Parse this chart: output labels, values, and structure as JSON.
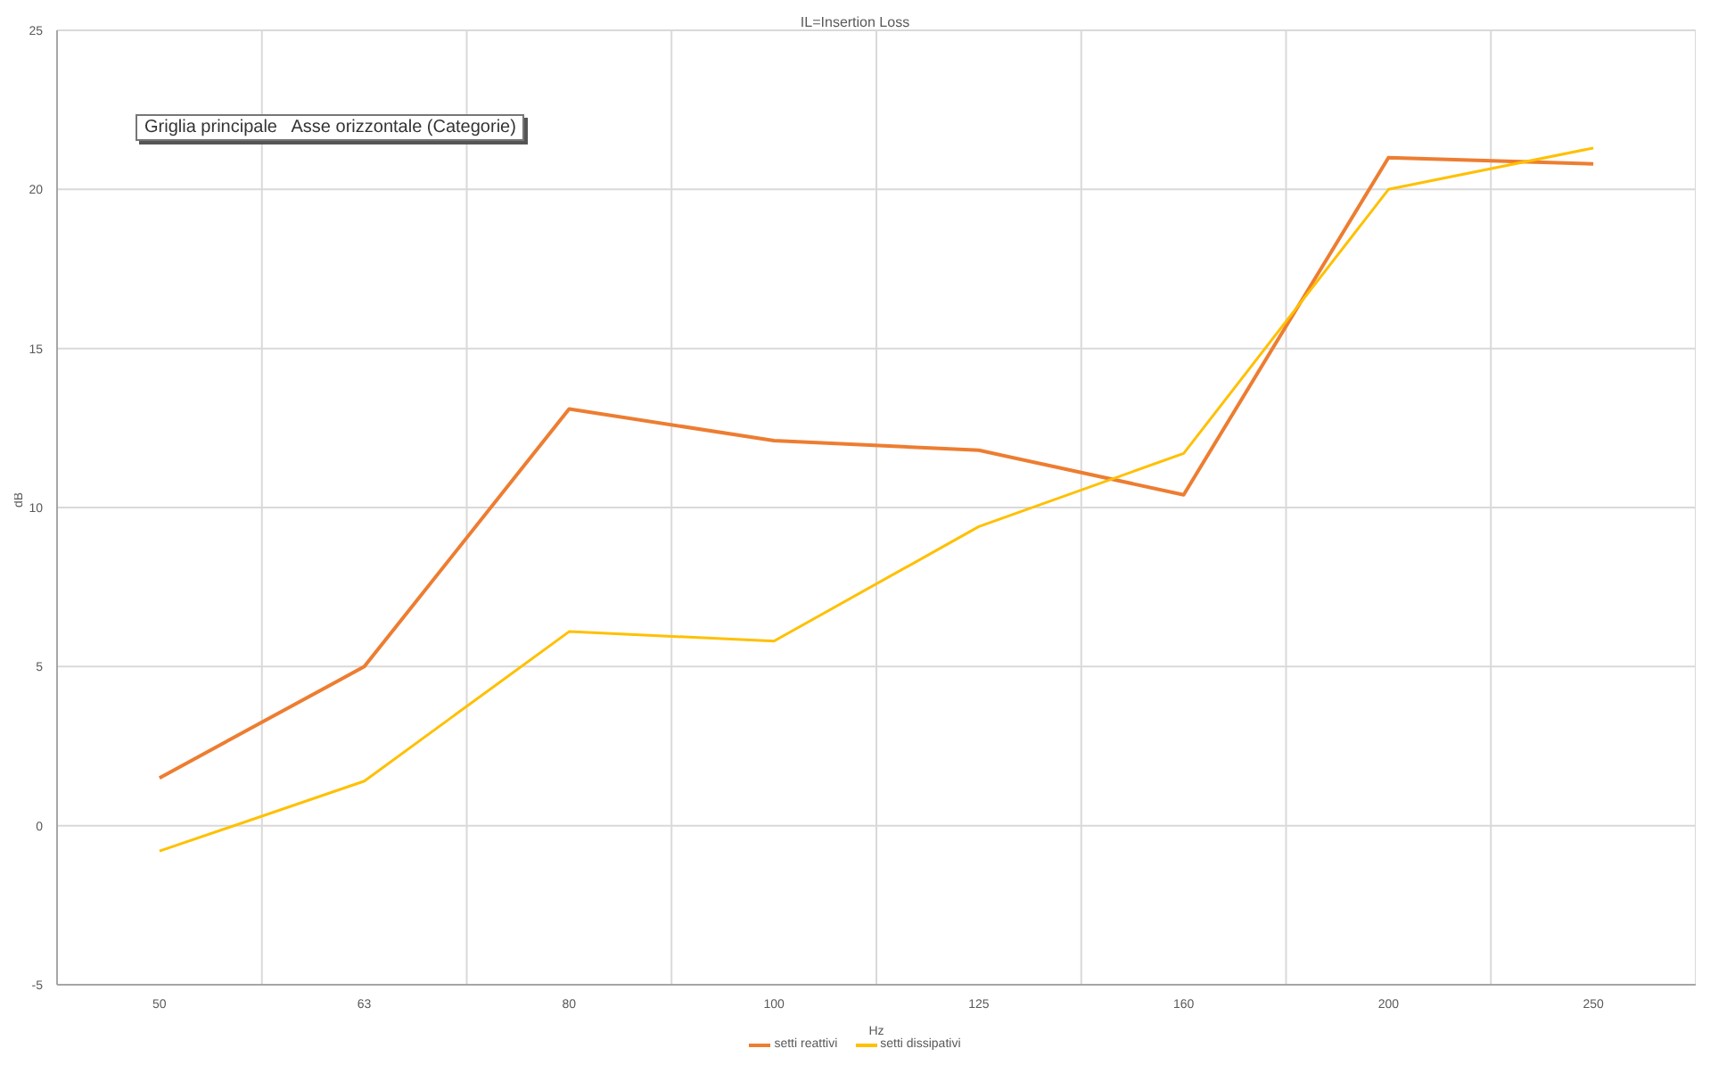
{
  "chart_data": {
    "type": "line",
    "title": "IL=Insertion Loss",
    "xlabel": "Hz",
    "ylabel": "dB",
    "categories": [
      "50",
      "63",
      "80",
      "100",
      "125",
      "160",
      "200",
      "250"
    ],
    "series": [
      {
        "name": "setti reattivi",
        "color": "#ed7d31",
        "values": [
          1.5,
          5.0,
          13.1,
          12.1,
          11.8,
          10.4,
          21.0,
          20.8
        ]
      },
      {
        "name": "setti dissipativi",
        "color": "#ffc000",
        "values": [
          -0.8,
          1.4,
          6.1,
          5.8,
          9.4,
          11.7,
          20.0,
          21.3
        ]
      }
    ],
    "ylim": [
      -5,
      25
    ],
    "yticks": [
      -5,
      0,
      5,
      10,
      15,
      20,
      25
    ],
    "grid": true,
    "legend": "bottom",
    "marker": "none",
    "line_style": "solid",
    "annotations": [
      "Griglia principale   Asse orizzontale (Categorie)"
    ]
  }
}
